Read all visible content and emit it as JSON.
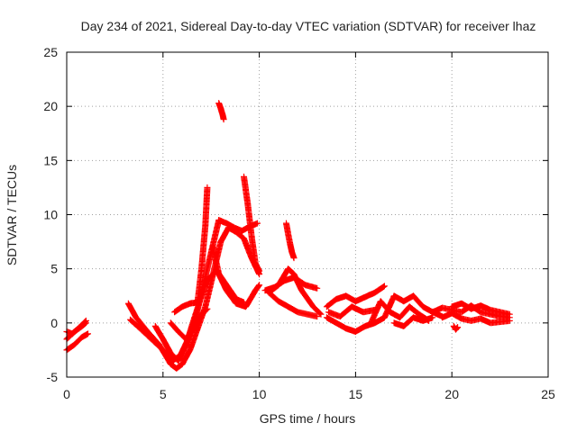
{
  "chart_data": {
    "type": "scatter",
    "title": "Day 234 of 2021, Sidereal Day-to-day VTEC variation (SDTVAR) for receiver lhaz",
    "xlabel": "GPS time / hours",
    "ylabel": "SDTVAR / TECUs",
    "xlim": [
      0,
      25
    ],
    "ylim": [
      -5,
      25
    ],
    "xticks": [
      0,
      5,
      10,
      15,
      20,
      25
    ],
    "yticks": [
      -5,
      0,
      5,
      10,
      15,
      20,
      25
    ],
    "xtick_labels": [
      "0",
      "5",
      "10",
      "15",
      "20",
      "25"
    ],
    "ytick_labels": [
      "-5",
      "0",
      "5",
      "10",
      "15",
      "20",
      "25"
    ],
    "grid": true,
    "marker": "+",
    "series": [
      {
        "name": "SDTVAR",
        "color": "#ff0000",
        "tracks": [
          [
            [
              0,
              -0.8
            ],
            [
              0.3,
              -1.0
            ],
            [
              0.6,
              -0.5
            ],
            [
              1.0,
              0.2
            ]
          ],
          [
            [
              0,
              -1.5
            ],
            [
              0.4,
              -0.8
            ],
            [
              0.8,
              -0.3
            ],
            [
              1.0,
              0.0
            ]
          ],
          [
            [
              0,
              -2.5
            ],
            [
              0.4,
              -2.0
            ],
            [
              0.8,
              -1.3
            ],
            [
              1.1,
              -1.0
            ]
          ],
          [
            [
              3.2,
              1.8
            ],
            [
              3.6,
              0.5
            ],
            [
              4.2,
              -0.8
            ],
            [
              4.8,
              -2.0
            ],
            [
              5.4,
              -3.8
            ],
            [
              5.7,
              -4.2
            ],
            [
              6.0,
              -3.8
            ],
            [
              6.4,
              -2.5
            ],
            [
              6.8,
              -0.5
            ],
            [
              7.2,
              1.5
            ],
            [
              7.6,
              4.5
            ],
            [
              8.0,
              7.5
            ],
            [
              8.4,
              8.8
            ],
            [
              8.8,
              8.4
            ],
            [
              9.2,
              7.8
            ],
            [
              9.6,
              6.0
            ],
            [
              10.0,
              4.5
            ]
          ],
          [
            [
              3.3,
              0.3
            ],
            [
              3.8,
              -0.5
            ],
            [
              4.4,
              -1.5
            ],
            [
              5.0,
              -2.5
            ],
            [
              5.5,
              -3.5
            ],
            [
              5.9,
              -3.0
            ],
            [
              6.3,
              -1.5
            ],
            [
              6.7,
              0.5
            ],
            [
              7.1,
              3.5
            ],
            [
              7.5,
              6.5
            ],
            [
              7.9,
              9.5
            ],
            [
              8.3,
              9.2
            ],
            [
              8.7,
              8.8
            ],
            [
              9.1,
              8.5
            ],
            [
              9.5,
              8.9
            ],
            [
              9.9,
              9.2
            ]
          ],
          [
            [
              4.6,
              -0.3
            ],
            [
              5.0,
              -1.5
            ],
            [
              5.4,
              -2.8
            ],
            [
              5.8,
              -3.5
            ],
            [
              6.2,
              -2.0
            ],
            [
              6.6,
              0.3
            ],
            [
              7.0,
              2.5
            ],
            [
              7.3,
              4.0
            ],
            [
              7.8,
              4.8
            ],
            [
              8.3,
              3.5
            ],
            [
              8.8,
              2.2
            ],
            [
              9.2,
              1.9
            ]
          ],
          [
            [
              5.4,
              0.0
            ],
            [
              5.8,
              -0.8
            ],
            [
              6.2,
              -1.5
            ],
            [
              6.6,
              -0.5
            ],
            [
              7.0,
              0.8
            ],
            [
              7.3,
              1.3
            ]
          ],
          [
            [
              5.6,
              1.0
            ],
            [
              6.0,
              1.5
            ],
            [
              6.4,
              1.8
            ],
            [
              6.8,
              1.9
            ]
          ],
          [
            [
              6.8,
              2.0
            ],
            [
              7.0,
              5.0
            ],
            [
              7.2,
              9.0
            ],
            [
              7.3,
              12.5
            ]
          ],
          [
            [
              7.6,
              7.0
            ],
            [
              7.9,
              4.5
            ],
            [
              8.3,
              3.0
            ],
            [
              8.8,
              1.8
            ],
            [
              9.3,
              1.5
            ],
            [
              9.8,
              3.0
            ],
            [
              10.0,
              3.5
            ]
          ],
          [
            [
              7.9,
              20.3
            ],
            [
              8.0,
              19.8
            ],
            [
              8.1,
              19.2
            ],
            [
              8.15,
              18.8
            ]
          ],
          [
            [
              9.2,
              13.5
            ],
            [
              9.4,
              11.0
            ],
            [
              9.6,
              8.0
            ],
            [
              9.8,
              5.5
            ],
            [
              10.0,
              4.8
            ]
          ],
          [
            [
              10.3,
              3.0
            ],
            [
              10.8,
              3.3
            ],
            [
              11.3,
              3.9
            ],
            [
              11.8,
              4.2
            ],
            [
              12.4,
              3.5
            ],
            [
              13.0,
              3.2
            ]
          ],
          [
            [
              10.5,
              2.8
            ],
            [
              11.0,
              3.5
            ],
            [
              11.5,
              5.0
            ],
            [
              11.8,
              4.5
            ],
            [
              12.2,
              3.0
            ],
            [
              12.8,
              1.5
            ],
            [
              13.2,
              0.8
            ]
          ],
          [
            [
              10.5,
              2.8
            ],
            [
              11.0,
              2.0
            ],
            [
              11.5,
              1.5
            ],
            [
              12.0,
              1.0
            ],
            [
              12.5,
              0.8
            ],
            [
              13.0,
              0.6
            ]
          ],
          [
            [
              11.4,
              9.2
            ],
            [
              11.5,
              8.2
            ],
            [
              11.6,
              7.3
            ],
            [
              11.7,
              6.5
            ],
            [
              11.8,
              6.0
            ]
          ],
          [
            [
              13.5,
              1.5
            ],
            [
              14.0,
              2.2
            ],
            [
              14.5,
              2.5
            ],
            [
              15.0,
              2.0
            ],
            [
              15.5,
              2.4
            ],
            [
              16.0,
              2.8
            ],
            [
              16.5,
              3.4
            ]
          ],
          [
            [
              13.5,
              0.5
            ],
            [
              14.0,
              0.0
            ],
            [
              14.5,
              -0.5
            ],
            [
              15.0,
              -0.8
            ],
            [
              15.5,
              -0.3
            ],
            [
              16.0,
              0.0
            ],
            [
              16.5,
              0.5
            ]
          ],
          [
            [
              13.6,
              1.0
            ],
            [
              14.2,
              0.6
            ],
            [
              14.8,
              1.5
            ],
            [
              15.4,
              1.0
            ],
            [
              16.0,
              1.2
            ]
          ],
          [
            [
              15.8,
              0.0
            ],
            [
              16.3,
              2.0
            ],
            [
              16.8,
              1.0
            ],
            [
              17.3,
              0.5
            ],
            [
              17.8,
              1.5
            ],
            [
              18.3,
              0.8
            ],
            [
              18.8,
              0.2
            ]
          ],
          [
            [
              16.5,
              0.5
            ],
            [
              17.0,
              2.5
            ],
            [
              17.5,
              2.0
            ],
            [
              18.0,
              2.5
            ],
            [
              18.5,
              1.5
            ],
            [
              19.0,
              1.0
            ],
            [
              19.5,
              0.6
            ]
          ],
          [
            [
              17.0,
              0.0
            ],
            [
              17.5,
              -0.3
            ],
            [
              18.0,
              0.5
            ],
            [
              18.5,
              0.2
            ],
            [
              19.0,
              0.5
            ]
          ],
          [
            [
              19.0,
              1.0
            ],
            [
              19.5,
              1.4
            ],
            [
              20.0,
              1.2
            ],
            [
              20.5,
              1.0
            ],
            [
              21.0,
              1.6
            ],
            [
              21.5,
              1.0
            ],
            [
              22.0,
              0.8
            ],
            [
              22.5,
              0.6
            ],
            [
              23.0,
              0.5
            ]
          ],
          [
            [
              19.5,
              0.5
            ],
            [
              20.0,
              0.9
            ],
            [
              20.5,
              0.4
            ],
            [
              21.0,
              0.2
            ],
            [
              21.5,
              0.4
            ],
            [
              22.0,
              0.0
            ],
            [
              22.5,
              0.1
            ],
            [
              23.0,
              0.2
            ]
          ],
          [
            [
              20.0,
              1.5
            ],
            [
              20.5,
              1.8
            ],
            [
              21.0,
              1.3
            ],
            [
              21.5,
              1.6
            ],
            [
              22.0,
              1.2
            ],
            [
              22.5,
              1.0
            ],
            [
              23.0,
              0.8
            ]
          ],
          [
            [
              20.1,
              -0.3
            ],
            [
              20.2,
              -0.6
            ],
            [
              20.3,
              -0.4
            ]
          ]
        ]
      }
    ]
  }
}
